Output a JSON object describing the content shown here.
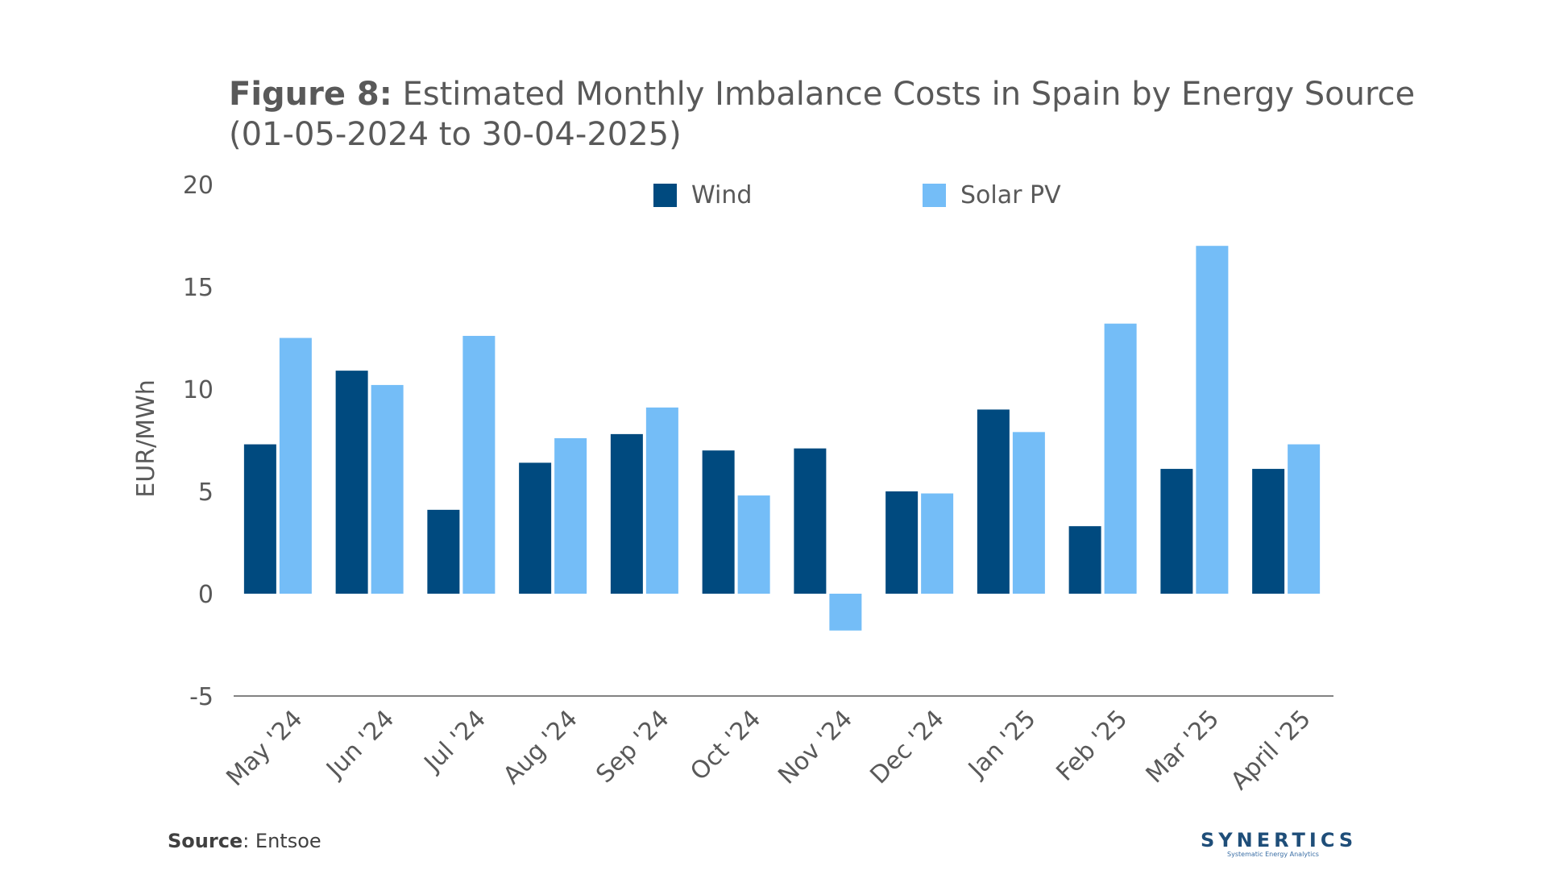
{
  "title": {
    "bold": "Figure 8:",
    "text": " Estimated Monthly Imbalance Costs in Spain by Energy Source (01-05-2024 to 30-04-2025)"
  },
  "chart_data": {
    "type": "bar",
    "title": "Figure 8: Estimated Monthly Imbalance Costs in Spain by Energy Source (01-05-2024 to 30-04-2025)",
    "xlabel": "",
    "ylabel": "EUR/MWh",
    "ylim": [
      -5,
      20
    ],
    "yticks": [
      -5,
      0,
      5,
      10,
      15,
      20
    ],
    "grid": false,
    "legend_position": "top",
    "categories": [
      "May '24",
      "Jun '24",
      "Jul '24",
      "Aug '24",
      "Sep '24",
      "Oct '24",
      "Nov '24",
      "Dec '24",
      "Jan '25",
      "Feb '25",
      "Mar '25",
      "April '25"
    ],
    "series": [
      {
        "name": "Wind",
        "color": "#004a7f",
        "values": [
          7.3,
          10.9,
          4.1,
          6.4,
          7.8,
          7.0,
          7.1,
          5.0,
          9.0,
          3.3,
          6.1,
          6.1
        ]
      },
      {
        "name": "Solar PV",
        "color": "#74bdf7",
        "values": [
          12.5,
          10.2,
          12.6,
          7.6,
          9.1,
          4.8,
          -1.8,
          4.9,
          7.9,
          13.2,
          17.0,
          7.3
        ]
      }
    ]
  },
  "source": {
    "bold": "Source",
    "text": ": Entsoe"
  },
  "logo": {
    "name": "SYNERTICS",
    "tagline": "Systematic Energy Analytics"
  }
}
